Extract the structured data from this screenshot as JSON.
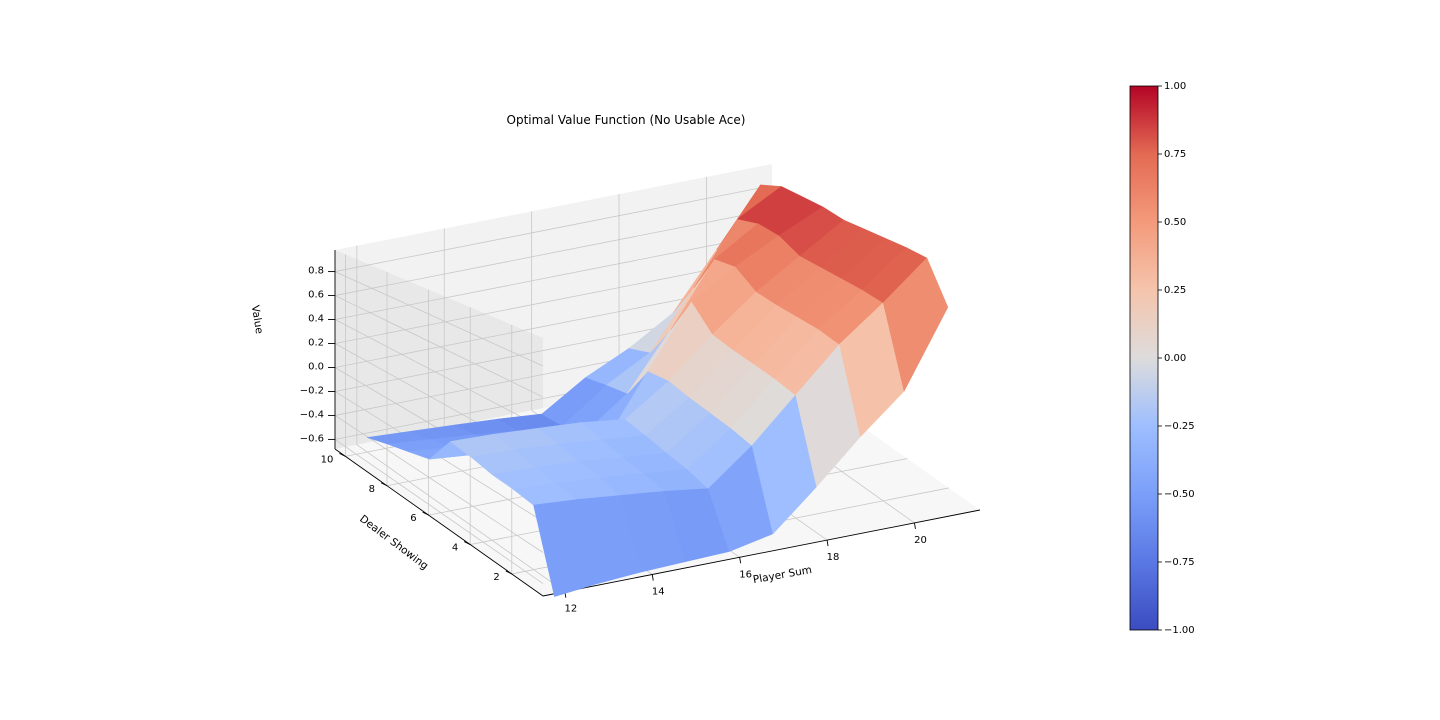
{
  "chart_data": {
    "type": "surface3d",
    "title": "Optimal Value Function (No Usable Ace)",
    "xlabel": "Player Sum",
    "ylabel": "Dealer Showing",
    "zlabel": "Value",
    "x_ticks": [
      "12",
      "14",
      "16",
      "18",
      "20"
    ],
    "y_ticks": [
      "2",
      "4",
      "6",
      "8",
      "10"
    ],
    "z_ticks": [
      "−0.6",
      "−0.4",
      "−0.2",
      "0.0",
      "0.2",
      "0.4",
      "0.6",
      "0.8"
    ],
    "x": [
      12,
      13,
      14,
      15,
      16,
      17,
      18,
      19,
      20,
      21
    ],
    "y": [
      1,
      2,
      3,
      4,
      5,
      6,
      7,
      8,
      9,
      10
    ],
    "zlim": [
      -0.68,
      0.98
    ],
    "colormap": "coolwarm",
    "grid": true,
    "z": [
      [
        -0.76,
        -0.73,
        -0.71,
        -0.7,
        -0.69,
        -0.63,
        -0.38,
        -0.11,
        0.13,
        0.62
      ],
      [
        -0.25,
        -0.27,
        -0.3,
        -0.33,
        -0.37,
        -0.14,
        0.14,
        0.42,
        0.64,
        0.88
      ],
      [
        -0.23,
        -0.25,
        -0.27,
        -0.3,
        -0.33,
        -0.11,
        0.17,
        0.45,
        0.66,
        0.89
      ],
      [
        -0.22,
        -0.23,
        -0.25,
        -0.28,
        -0.31,
        -0.09,
        0.19,
        0.46,
        0.67,
        0.89
      ],
      [
        -0.19,
        -0.2,
        -0.22,
        -0.25,
        -0.28,
        -0.07,
        0.21,
        0.47,
        0.68,
        0.89
      ],
      [
        -0.17,
        -0.18,
        -0.2,
        -0.22,
        -0.26,
        -0.04,
        0.24,
        0.49,
        0.69,
        0.89
      ],
      [
        -0.4,
        -0.43,
        -0.46,
        -0.5,
        -0.54,
        -0.06,
        0.4,
        0.6,
        0.77,
        0.92
      ],
      [
        -0.45,
        -0.48,
        -0.51,
        -0.55,
        -0.58,
        -0.33,
        0.1,
        0.58,
        0.79,
        0.93
      ],
      [
        -0.5,
        -0.53,
        -0.56,
        -0.6,
        -0.63,
        -0.37,
        -0.18,
        0.27,
        0.75,
        0.94
      ],
      [
        -0.56,
        -0.58,
        -0.6,
        -0.62,
        -0.65,
        -0.42,
        -0.25,
        -0.03,
        0.42,
        0.88
      ]
    ],
    "colorbar": {
      "ticks": [
        "−1.00",
        "−0.75",
        "−0.50",
        "−0.25",
        "0.00",
        "0.25",
        "0.50",
        "0.75",
        "1.00"
      ],
      "range": [
        -1,
        1
      ]
    }
  }
}
